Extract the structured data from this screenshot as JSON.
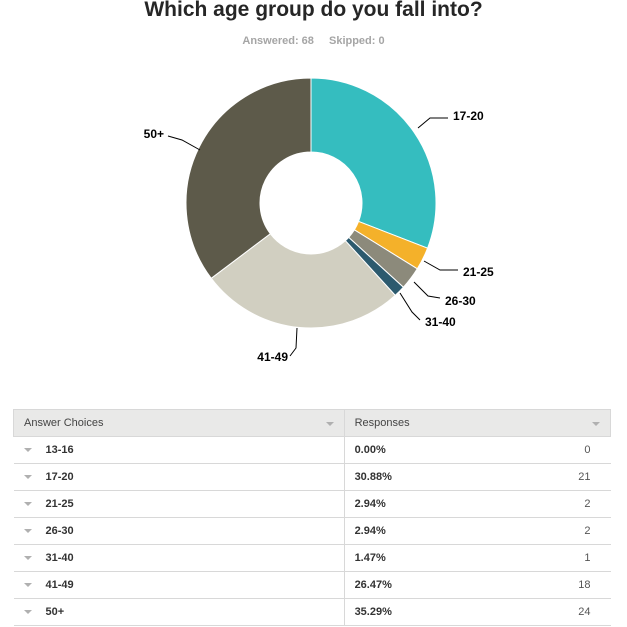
{
  "title": "Which age group do you fall into?",
  "stats": {
    "answered": "Answered: 68",
    "skipped": "Skipped: 0"
  },
  "colors": {
    "17-20": "#35bdbf",
    "21-25": "#f4b12a",
    "26-30": "#8c8a7b",
    "31-40": "#2c5a6e",
    "41-49": "#d1cfc1",
    "50+": "#5d5a4a"
  },
  "chart_data": {
    "type": "pie",
    "categories": [
      "13-16",
      "17-20",
      "21-25",
      "26-30",
      "31-40",
      "41-49",
      "50+"
    ],
    "values": [
      0,
      21,
      2,
      2,
      1,
      18,
      24
    ],
    "percentages": [
      0.0,
      30.88,
      2.94,
      2.94,
      1.47,
      26.47,
      35.29
    ],
    "labels_shown": [
      "17-20",
      "21-25",
      "26-30",
      "31-40",
      "41-49",
      "50+"
    ],
    "donut": true
  },
  "table": {
    "headers": [
      "Answer Choices",
      "Responses"
    ],
    "rows": [
      {
        "choice": "13-16",
        "percent": "0.00%",
        "count": "0"
      },
      {
        "choice": "17-20",
        "percent": "30.88%",
        "count": "21"
      },
      {
        "choice": "21-25",
        "percent": "2.94%",
        "count": "2"
      },
      {
        "choice": "26-30",
        "percent": "2.94%",
        "count": "2"
      },
      {
        "choice": "31-40",
        "percent": "1.47%",
        "count": "1"
      },
      {
        "choice": "41-49",
        "percent": "26.47%",
        "count": "18"
      },
      {
        "choice": "50+",
        "percent": "35.29%",
        "count": "24"
      }
    ]
  }
}
